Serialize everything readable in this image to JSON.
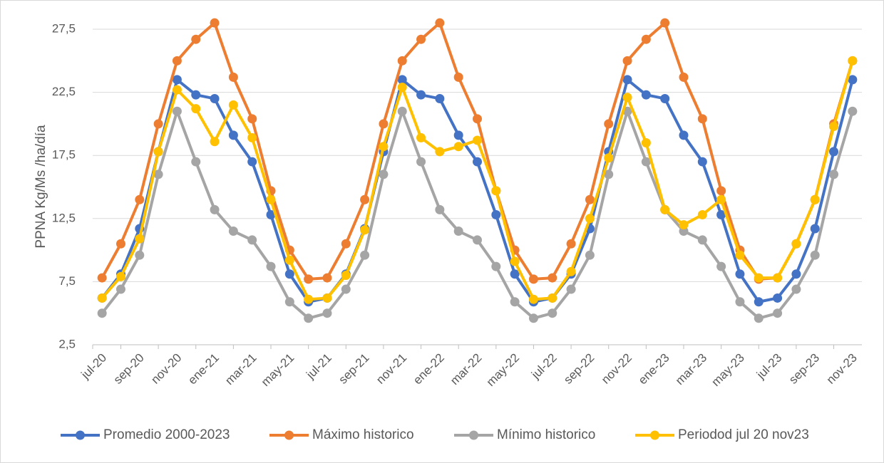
{
  "chart_data": {
    "type": "line",
    "y_label": "PPNA Kg/Ms /ha/día",
    "categories": [
      "jul-20",
      null,
      "sep-20",
      null,
      "nov-20",
      null,
      "ene-21",
      null,
      "mar-21",
      null,
      "may-21",
      null,
      "jul-21",
      null,
      "sep-21",
      null,
      "nov-21",
      null,
      "ene-22",
      null,
      "mar-22",
      null,
      "may-22",
      null,
      "jul-22",
      null,
      "sep-22",
      null,
      "nov-22",
      null,
      "ene-23",
      null,
      "mar-23",
      null,
      "may-23",
      null,
      "jul-23",
      null,
      "sep-23",
      null,
      "nov-23"
    ],
    "series": [
      {
        "name": "Promedio 2000-2023",
        "color": "#4472c4",
        "values": [
          6.2,
          8.1,
          11.7,
          17.8,
          23.5,
          22.3,
          22.0,
          19.1,
          17.0,
          12.8,
          8.1,
          5.9,
          6.2,
          8.1,
          11.7,
          17.8,
          23.5,
          22.3,
          22.0,
          19.1,
          17.0,
          12.8,
          8.1,
          5.9,
          6.2,
          8.1,
          11.7,
          17.8,
          23.5,
          22.3,
          22.0,
          19.1,
          17.0,
          12.8,
          8.1,
          5.9,
          6.2,
          8.1,
          11.7,
          17.8,
          23.5
        ]
      },
      {
        "name": "Máximo historico",
        "color": "#ed7d31",
        "values": [
          7.8,
          10.5,
          14.0,
          20.0,
          25.0,
          26.7,
          28.0,
          23.7,
          20.4,
          14.7,
          10.0,
          7.7,
          7.8,
          10.5,
          14.0,
          20.0,
          25.0,
          26.7,
          28.0,
          23.7,
          20.4,
          14.7,
          10.0,
          7.7,
          7.8,
          10.5,
          14.0,
          20.0,
          25.0,
          26.7,
          28.0,
          23.7,
          20.4,
          14.7,
          10.0,
          7.7,
          7.8,
          10.5,
          14.0,
          20.0,
          25.0
        ]
      },
      {
        "name": "Mínimo historico",
        "color": "#a5a5a5",
        "values": [
          5.0,
          6.9,
          9.6,
          16.0,
          21.0,
          17.0,
          13.2,
          11.5,
          10.8,
          8.7,
          5.9,
          4.6,
          5.0,
          6.9,
          9.6,
          16.0,
          21.0,
          17.0,
          13.2,
          11.5,
          10.8,
          8.7,
          5.9,
          4.6,
          5.0,
          6.9,
          9.6,
          16.0,
          21.0,
          17.0,
          13.2,
          11.5,
          10.8,
          8.7,
          5.9,
          4.6,
          5.0,
          6.9,
          9.6,
          16.0,
          21.0
        ]
      },
      {
        "name": "Periodod jul 20 nov23",
        "color": "#ffc000",
        "values": [
          6.2,
          7.9,
          10.9,
          17.8,
          22.7,
          21.2,
          18.6,
          21.5,
          18.9,
          14.0,
          9.2,
          6.1,
          6.2,
          8.0,
          11.6,
          18.2,
          22.9,
          18.9,
          17.8,
          18.2,
          18.7,
          14.7,
          9.1,
          6.1,
          6.2,
          8.3,
          12.5,
          17.3,
          22.1,
          18.5,
          13.2,
          12.0,
          12.8,
          14.0,
          9.6,
          7.8,
          7.8,
          10.5,
          14.0,
          19.8,
          25.0
        ]
      }
    ],
    "ylim": [
      2.5,
      28.5
    ],
    "yticks": [
      {
        "value": 2.5,
        "label": "2,5"
      },
      {
        "value": 7.5,
        "label": "7,5"
      },
      {
        "value": 12.5,
        "label": "12,5"
      },
      {
        "value": 17.5,
        "label": "17,5"
      },
      {
        "value": 22.5,
        "label": "22,5"
      },
      {
        "value": 27.5,
        "label": "27,5"
      }
    ],
    "grid": true,
    "legend": "bottom"
  }
}
